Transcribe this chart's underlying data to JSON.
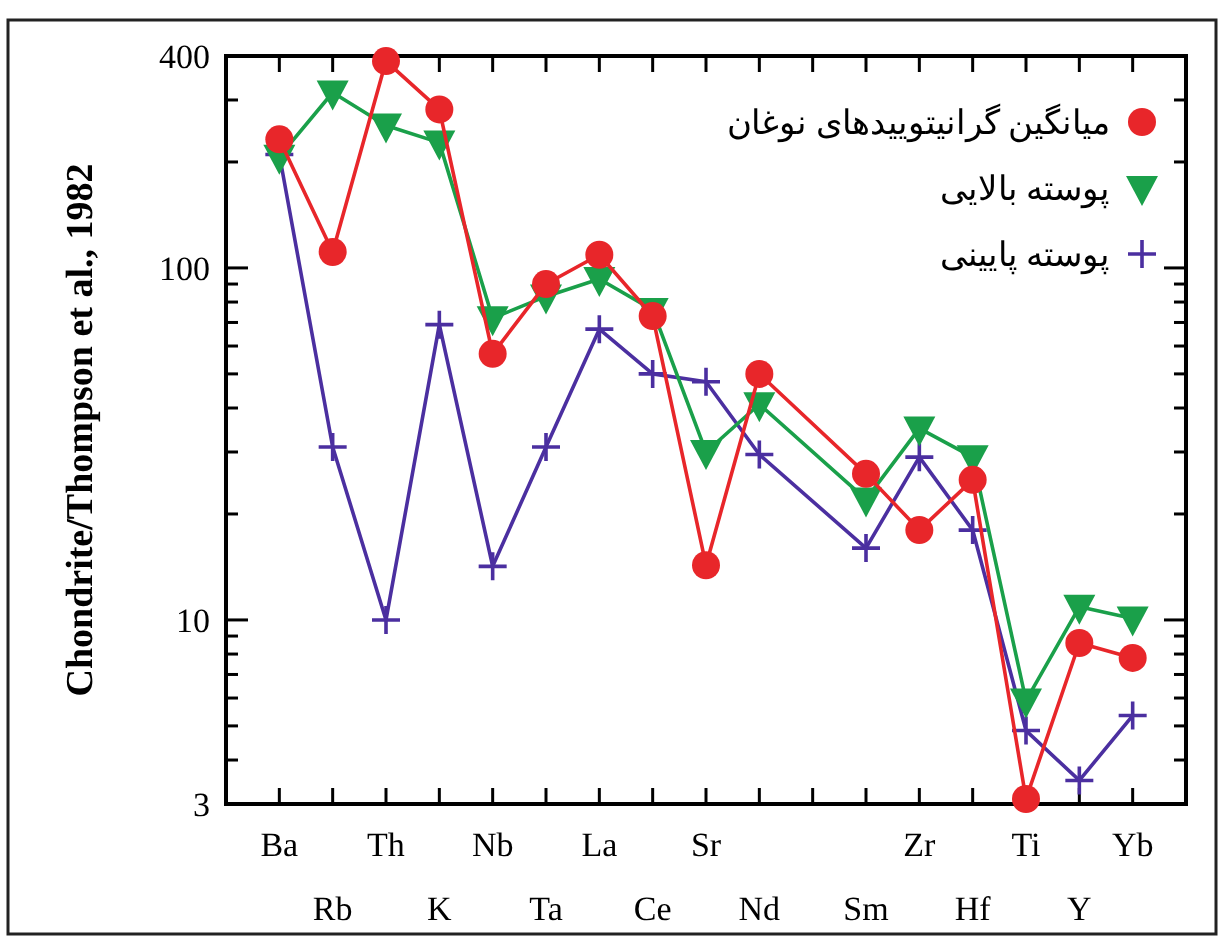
{
  "chart_data": {
    "type": "line",
    "ylabel": "Chondrite/Thompson et al., 1982",
    "categories": [
      "Ba",
      "Rb",
      "Th",
      "K",
      "Nb",
      "Ta",
      "La",
      "Ce",
      "Sr",
      "Nd",
      null,
      "Sm",
      "Zr",
      "Hf",
      "Ti",
      "Y",
      "Yb"
    ],
    "log": "y",
    "ylim": [
      3,
      400
    ],
    "yticks": [
      3,
      {
        "value": 4,
        "label": null
      },
      {
        "value": 5,
        "label": null
      },
      {
        "value": 6,
        "label": null
      },
      {
        "value": 7,
        "label": null
      },
      {
        "value": 8,
        "label": null
      },
      {
        "value": 9,
        "label": null
      },
      10,
      {
        "value": 20,
        "label": null
      },
      {
        "value": 30,
        "label": null
      },
      {
        "value": 40,
        "label": null
      },
      {
        "value": 50,
        "label": null
      },
      {
        "value": 60,
        "label": null
      },
      {
        "value": 70,
        "label": null
      },
      {
        "value": 80,
        "label": null
      },
      {
        "value": 90,
        "label": null
      },
      100,
      {
        "value": 200,
        "label": null
      },
      {
        "value": 300,
        "label": null
      },
      400
    ],
    "grid": false,
    "legend": "top right",
    "series": [
      {
        "name": "میانگین گرانیتوییدهای نوغان",
        "color": "#e8262a",
        "marker": "circle",
        "values": [
          232,
          111,
          387,
          282,
          57,
          90,
          109,
          73,
          14.3,
          50,
          null,
          26,
          18,
          25,
          3.1,
          8.6,
          7.8
        ]
      },
      {
        "name": "پوسته بالایی",
        "color": "#1aa04a",
        "marker": "triangle",
        "values": [
          207,
          315,
          254,
          227,
          72,
          83,
          93,
          76,
          30,
          41,
          null,
          22,
          35,
          29,
          5.9,
          10.9,
          10.1
        ]
      },
      {
        "name": "پوسته پایینی",
        "color": "#4b2fa0",
        "marker": "cross",
        "values": [
          210,
          31,
          10,
          69,
          14.2,
          31,
          67,
          50,
          47.5,
          29.5,
          null,
          16,
          29,
          18,
          4.85,
          3.5,
          5.35
        ]
      }
    ]
  }
}
